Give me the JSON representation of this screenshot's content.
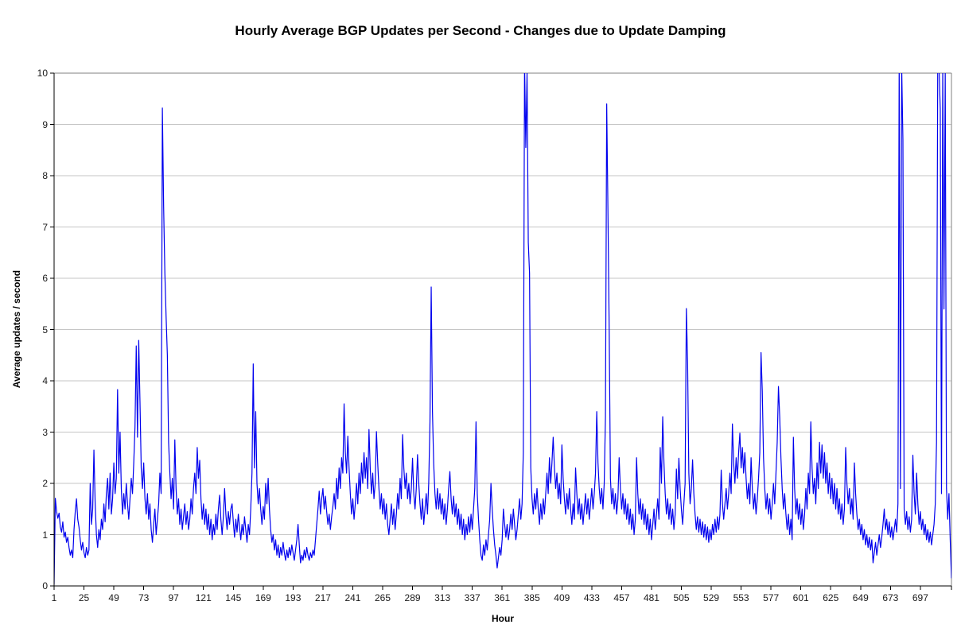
{
  "page": {
    "background": "#ffffff"
  },
  "chart_data": {
    "type": "line",
    "title": "Hourly Average BGP Updates per Second - Changes due to Update Damping",
    "xlabel": "Hour",
    "ylabel": "Average updates / second",
    "legend": "none",
    "grid": "horizontal",
    "xlim": [
      1,
      722
    ],
    "ylim": [
      0,
      10
    ],
    "y_tick_step": 1,
    "y_tick_labels": [
      "0",
      "1",
      "2",
      "3",
      "4",
      "5",
      "6",
      "7",
      "8",
      "9",
      "10"
    ],
    "x_ticks": [
      1,
      25,
      49,
      73,
      97,
      121,
      145,
      169,
      193,
      217,
      241,
      265,
      289,
      313,
      337,
      361,
      385,
      409,
      433,
      457,
      481,
      505,
      529,
      553,
      577,
      601,
      625,
      649,
      673,
      697
    ],
    "clip_at_ymax": true,
    "colors": {
      "line": "#0000ee",
      "grid": "#c6c6c6",
      "plot_border": "#808080",
      "axis": "#000000",
      "text": "#1a1a1a"
    },
    "series": [
      {
        "name": "Hourly average BGP updates per second",
        "color": "#0000ee",
        "x_start": 1,
        "values": [
          0.03,
          1.71,
          1.45,
          1.32,
          1.42,
          1.15,
          1.05,
          1.25,
          0.95,
          1.05,
          0.85,
          0.95,
          0.75,
          0.6,
          0.7,
          0.55,
          1.1,
          1.45,
          1.7,
          1.3,
          1.15,
          0.9,
          0.7,
          0.85,
          0.65,
          0.55,
          0.75,
          0.6,
          0.7,
          2.0,
          1.2,
          1.5,
          2.65,
          1.6,
          1.0,
          0.75,
          1.1,
          0.9,
          1.3,
          1.1,
          1.6,
          1.25,
          1.8,
          2.1,
          1.5,
          2.2,
          1.4,
          1.7,
          2.4,
          1.8,
          2.1,
          3.83,
          2.2,
          3.0,
          1.9,
          1.4,
          1.8,
          1.5,
          2.0,
          1.6,
          1.3,
          1.7,
          2.1,
          1.8,
          2.4,
          3.1,
          4.68,
          2.9,
          4.79,
          3.6,
          2.3,
          1.9,
          2.4,
          1.7,
          1.4,
          1.8,
          1.3,
          1.6,
          1.1,
          0.85,
          1.2,
          1.5,
          1.0,
          1.3,
          1.6,
          2.2,
          1.8,
          9.32,
          7.4,
          6.1,
          5.25,
          4.5,
          2.8,
          2.2,
          1.7,
          2.1,
          1.5,
          2.85,
          1.9,
          1.4,
          1.7,
          1.2,
          1.5,
          1.1,
          1.35,
          1.6,
          1.2,
          1.45,
          1.1,
          1.3,
          1.7,
          1.4,
          1.9,
          2.2,
          1.8,
          2.7,
          2.1,
          2.45,
          1.7,
          1.3,
          1.6,
          1.2,
          1.5,
          1.1,
          1.4,
          1.0,
          1.3,
          0.9,
          1.2,
          1.0,
          1.4,
          1.1,
          1.5,
          1.77,
          1.3,
          1.0,
          1.35,
          1.9,
          1.4,
          1.1,
          1.45,
          1.2,
          1.5,
          1.6,
          1.25,
          0.95,
          1.3,
          1.05,
          1.4,
          1.15,
          0.9,
          1.2,
          1.0,
          1.35,
          1.1,
          0.85,
          1.2,
          1.0,
          1.5,
          2.2,
          4.33,
          2.3,
          3.4,
          2.0,
          1.6,
          1.9,
          1.5,
          1.2,
          1.55,
          1.3,
          2.0,
          1.6,
          2.1,
          1.5,
          1.1,
          0.85,
          1.0,
          0.7,
          0.9,
          0.6,
          0.8,
          0.55,
          0.75,
          0.6,
          0.85,
          0.65,
          0.5,
          0.7,
          0.55,
          0.75,
          0.6,
          0.8,
          0.65,
          0.5,
          0.7,
          0.9,
          1.2,
          0.8,
          0.45,
          0.6,
          0.5,
          0.7,
          0.55,
          0.75,
          0.6,
          0.5,
          0.65,
          0.55,
          0.7,
          0.6,
          0.9,
          1.2,
          1.5,
          1.85,
          1.4,
          1.7,
          1.9,
          1.5,
          1.75,
          1.45,
          1.2,
          1.4,
          1.1,
          1.35,
          1.55,
          1.8,
          1.5,
          2.1,
          1.7,
          2.3,
          1.9,
          2.5,
          2.2,
          3.55,
          2.6,
          2.2,
          2.92,
          2.3,
          1.8,
          1.4,
          1.7,
          1.3,
          1.6,
          2.0,
          1.6,
          2.2,
          1.8,
          2.4,
          2.0,
          2.6,
          2.1,
          2.5,
          1.9,
          3.05,
          2.3,
          1.8,
          2.2,
          1.7,
          2.0,
          3.01,
          2.4,
          1.9,
          1.5,
          1.8,
          1.4,
          1.7,
          1.3,
          1.6,
          1.2,
          1.0,
          1.3,
          1.6,
          1.2,
          1.5,
          1.1,
          1.4,
          1.8,
          1.5,
          2.1,
          1.7,
          2.95,
          2.3,
          1.9,
          2.2,
          1.7,
          2.0,
          1.6,
          1.9,
          2.49,
          1.8,
          1.5,
          1.9,
          2.56,
          2.0,
          1.6,
          1.3,
          1.7,
          1.2,
          1.5,
          1.8,
          1.4,
          2.0,
          3.2,
          5.83,
          3.4,
          2.38,
          1.8,
          1.5,
          1.9,
          1.5,
          1.8,
          1.4,
          1.7,
          1.3,
          1.6,
          1.2,
          1.5,
          1.9,
          2.23,
          1.7,
          1.4,
          1.75,
          1.35,
          1.6,
          1.2,
          1.5,
          1.1,
          1.4,
          1.0,
          1.3,
          0.9,
          1.2,
          1.0,
          1.35,
          1.05,
          1.4,
          1.1,
          1.5,
          1.9,
          3.2,
          1.8,
          1.3,
          0.9,
          0.6,
          0.5,
          0.8,
          0.6,
          0.9,
          0.7,
          1.0,
          1.3,
          2.0,
          1.5,
          1.1,
          0.8,
          0.6,
          0.35,
          0.55,
          0.75,
          0.6,
          0.9,
          1.5,
          1.2,
          0.95,
          1.2,
          0.9,
          1.1,
          1.4,
          1.1,
          1.5,
          1.2,
          0.9,
          1.1,
          1.4,
          1.7,
          1.3,
          1.6,
          2.6,
          10.2,
          8.55,
          10.0,
          6.7,
          6.1,
          2.3,
          1.7,
          1.4,
          1.8,
          1.5,
          1.9,
          1.5,
          1.2,
          1.6,
          1.3,
          1.7,
          1.4,
          1.8,
          2.2,
          1.8,
          2.5,
          2.0,
          2.4,
          2.9,
          2.3,
          1.9,
          2.2,
          1.7,
          2.0,
          1.6,
          2.75,
          2.1,
          1.7,
          1.4,
          1.8,
          1.5,
          1.9,
          1.5,
          1.2,
          1.6,
          1.3,
          2.3,
          1.8,
          1.4,
          1.7,
          1.3,
          1.6,
          1.2,
          1.5,
          1.8,
          1.4,
          1.7,
          1.3,
          1.6,
          1.9,
          1.5,
          1.8,
          2.2,
          3.4,
          2.4,
          1.9,
          1.6,
          1.9,
          1.5,
          2.0,
          3.3,
          9.4,
          7.3,
          5.0,
          2.1,
          1.6,
          1.9,
          1.5,
          1.8,
          1.4,
          1.7,
          2.5,
          1.9,
          1.5,
          1.8,
          1.4,
          1.7,
          1.3,
          1.6,
          1.2,
          1.5,
          1.1,
          1.4,
          1.0,
          1.3,
          2.5,
          1.8,
          1.4,
          1.7,
          1.3,
          1.6,
          1.2,
          1.5,
          1.1,
          1.4,
          1.0,
          1.3,
          0.9,
          1.2,
          1.5,
          1.1,
          1.4,
          1.7,
          1.3,
          2.7,
          2.0,
          3.3,
          2.4,
          1.8,
          1.4,
          1.7,
          1.3,
          1.6,
          1.2,
          1.5,
          1.1,
          1.4,
          2.28,
          1.7,
          2.49,
          1.9,
          1.5,
          1.2,
          1.6,
          2.0,
          5.41,
          4.35,
          2.2,
          1.6,
          1.9,
          2.46,
          1.8,
          1.4,
          1.1,
          1.35,
          1.05,
          1.3,
          1.0,
          1.25,
          0.95,
          1.2,
          0.9,
          1.15,
          0.85,
          1.1,
          0.9,
          1.2,
          1.0,
          1.3,
          1.05,
          1.35,
          1.1,
          1.4,
          2.26,
          1.6,
          1.3,
          1.6,
          1.9,
          1.5,
          1.8,
          2.2,
          1.8,
          3.16,
          2.4,
          2.0,
          2.5,
          2.1,
          2.6,
          2.98,
          2.3,
          2.7,
          2.2,
          2.6,
          2.1,
          1.7,
          2.0,
          1.6,
          2.5,
          1.9,
          1.5,
          1.8,
          1.4,
          1.7,
          2.1,
          2.6,
          4.55,
          3.8,
          2.5,
          1.9,
          1.5,
          1.8,
          1.4,
          1.7,
          1.3,
          1.6,
          2.0,
          1.6,
          2.2,
          2.8,
          3.89,
          3.3,
          2.5,
          1.9,
          1.5,
          1.8,
          1.4,
          1.1,
          1.4,
          1.0,
          1.3,
          0.9,
          2.9,
          1.9,
          1.4,
          1.7,
          1.3,
          1.6,
          1.2,
          1.5,
          1.1,
          1.4,
          1.9,
          1.5,
          2.2,
          1.8,
          3.2,
          2.3,
          1.8,
          2.1,
          1.6,
          2.4,
          1.9,
          2.8,
          2.2,
          2.75,
          2.1,
          2.6,
          2.0,
          2.4,
          1.8,
          2.2,
          1.7,
          2.1,
          1.6,
          2.0,
          1.5,
          1.9,
          1.4,
          1.7,
          1.3,
          1.6,
          1.2,
          1.5,
          2.7,
          2.0,
          1.6,
          1.9,
          1.4,
          1.7,
          1.3,
          2.4,
          1.8,
          1.4,
          1.1,
          1.3,
          1.0,
          1.2,
          0.9,
          1.1,
          0.8,
          1.0,
          0.75,
          0.95,
          0.7,
          0.9,
          0.45,
          0.65,
          0.85,
          0.6,
          0.8,
          1.0,
          0.75,
          0.95,
          1.2,
          1.5,
          1.1,
          1.3,
          1.0,
          1.25,
          0.95,
          1.15,
          0.9,
          1.1,
          1.3,
          1.05,
          1.6,
          10.3,
          1.9,
          10.15,
          8.7,
          1.5,
          1.2,
          1.45,
          1.1,
          1.35,
          1.05,
          1.3,
          2.55,
          1.8,
          1.4,
          2.2,
          1.6,
          1.2,
          1.45,
          1.1,
          1.3,
          1.0,
          1.2,
          0.9,
          1.1,
          0.85,
          1.05,
          0.8,
          1.0,
          1.2,
          1.6,
          2.8,
          10.35,
          10.15,
          9.3,
          1.8,
          10.1,
          5.4,
          10.05,
          1.9,
          1.3,
          1.8,
          0.9,
          0.15
        ]
      }
    ]
  }
}
